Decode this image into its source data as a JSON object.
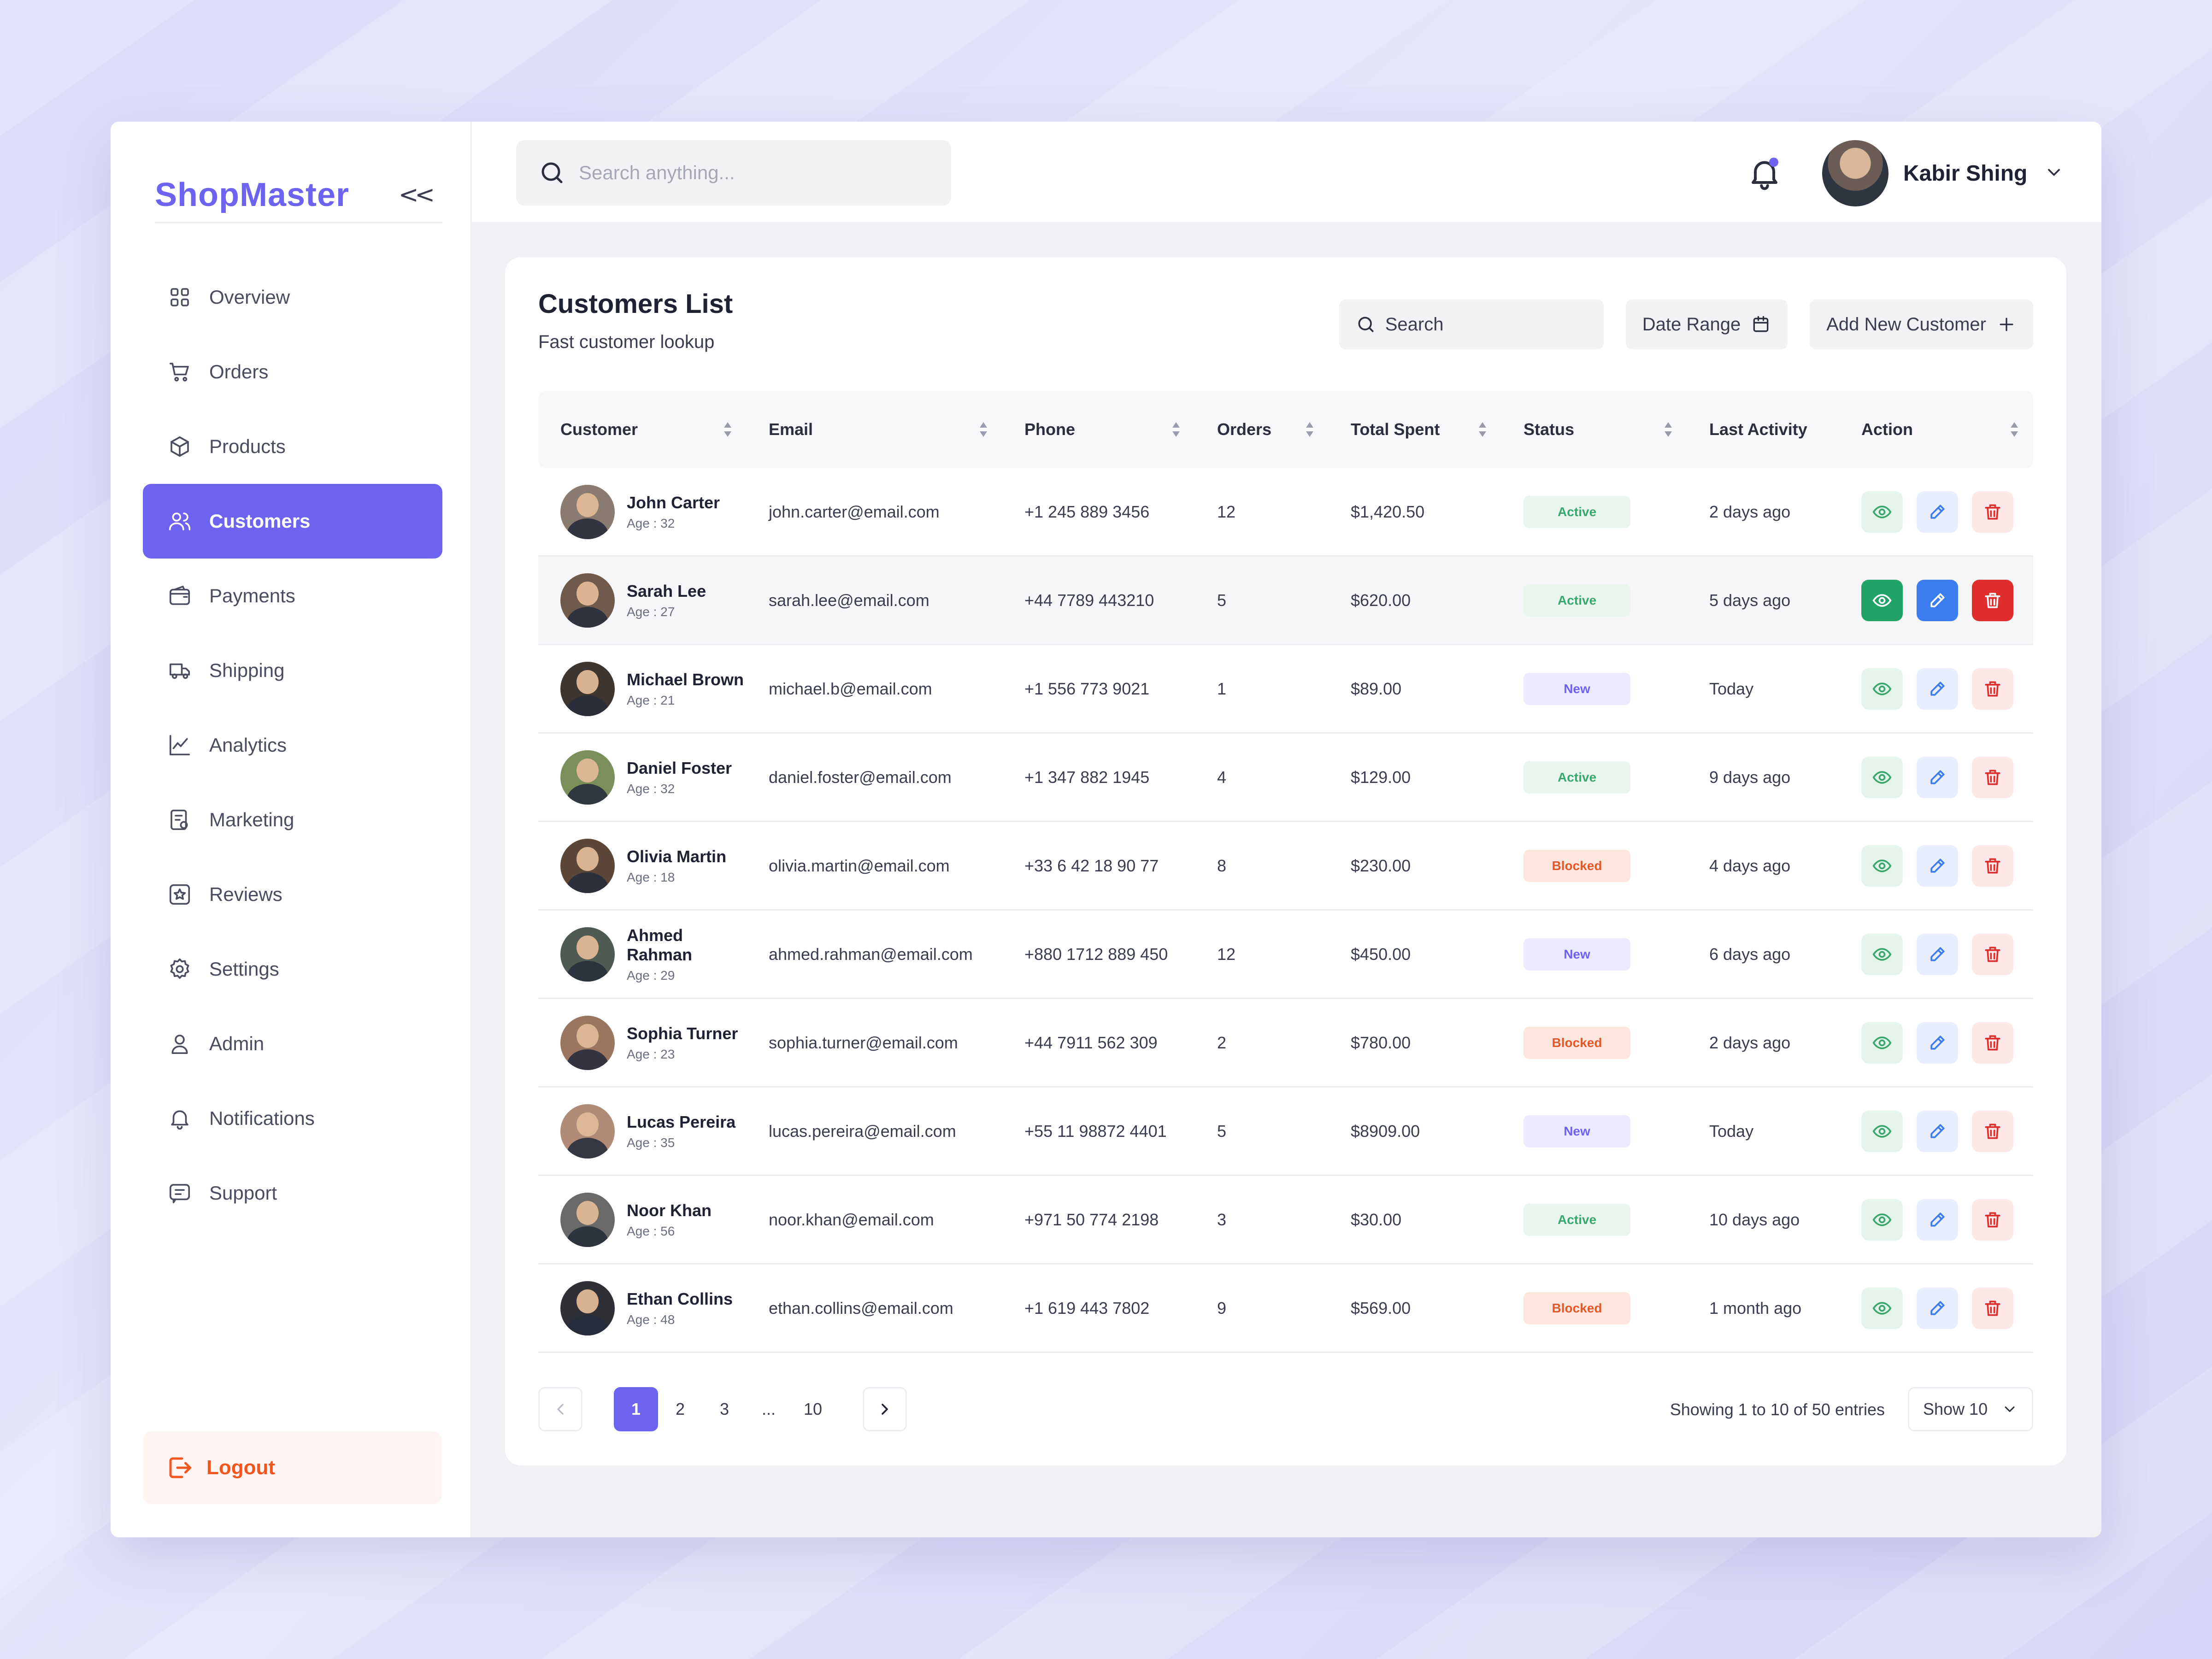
{
  "brand": {
    "name": "ShopMaster",
    "collapse_glyph": "<<"
  },
  "sidebar": {
    "items": [
      {
        "label": "Overview",
        "icon": "grid-icon"
      },
      {
        "label": "Orders",
        "icon": "cart-icon"
      },
      {
        "label": "Products",
        "icon": "box-icon"
      },
      {
        "label": "Customers",
        "icon": "users-icon",
        "active": true
      },
      {
        "label": "Payments",
        "icon": "wallet-icon"
      },
      {
        "label": "Shipping",
        "icon": "truck-icon"
      },
      {
        "label": "Analytics",
        "icon": "chart-icon"
      },
      {
        "label": "Marketing",
        "icon": "megaphone-icon"
      },
      {
        "label": "Reviews",
        "icon": "star-icon"
      },
      {
        "label": "Settings",
        "icon": "gear-icon"
      },
      {
        "label": "Admin",
        "icon": "person-icon"
      },
      {
        "label": "Notifications",
        "icon": "bell-icon"
      },
      {
        "label": "Support",
        "icon": "chat-icon"
      }
    ],
    "logout_label": "Logout"
  },
  "topbar": {
    "search_placeholder": "Search anything...",
    "user_name": "Kabir Shing"
  },
  "card": {
    "title": "Customers List",
    "subtitle": "Fast customer lookup",
    "search_label": "Search",
    "date_range_label": "Date Range",
    "add_label": "Add New Customer"
  },
  "table": {
    "headers": [
      "Customer",
      "Email",
      "Phone",
      "Orders",
      "Total Spent",
      "Status",
      "Last Activity",
      "Action"
    ],
    "rows": [
      {
        "name": "John Carter",
        "age": "Age : 32",
        "email": "john.carter@email.com",
        "phone": "+1 245 889 3456",
        "orders": "12",
        "spent": "$1,420.50",
        "status": "Active",
        "activity": "2 days ago"
      },
      {
        "name": "Sarah Lee",
        "age": "Age : 27",
        "email": "sarah.lee@email.com",
        "phone": "+44 7789 443210",
        "orders": "5",
        "spent": "$620.00",
        "status": "Active",
        "activity": "5 days ago"
      },
      {
        "name": "Michael Brown",
        "age": "Age : 21",
        "email": "michael.b@email.com",
        "phone": "+1 556 773 9021",
        "orders": "1",
        "spent": "$89.00",
        "status": "New",
        "activity": "Today"
      },
      {
        "name": "Daniel Foster",
        "age": "Age : 32",
        "email": "daniel.foster@email.com",
        "phone": "+1 347 882 1945",
        "orders": "4",
        "spent": "$129.00",
        "status": "Active",
        "activity": "9 days ago"
      },
      {
        "name": "Olivia Martin",
        "age": "Age : 18",
        "email": "olivia.martin@email.com",
        "phone": "+33 6 42 18 90 77",
        "orders": "8",
        "spent": "$230.00",
        "status": "Blocked",
        "activity": "4 days ago"
      },
      {
        "name": "Ahmed Rahman",
        "age": "Age : 29",
        "email": "ahmed.rahman@email.com",
        "phone": "+880 1712 889 450",
        "orders": "12",
        "spent": "$450.00",
        "status": "New",
        "activity": "6 days ago"
      },
      {
        "name": "Sophia Turner",
        "age": "Age : 23",
        "email": "sophia.turner@email.com",
        "phone": "+44 7911 562 309",
        "orders": "2",
        "spent": "$780.00",
        "status": "Blocked",
        "activity": "2 days ago"
      },
      {
        "name": "Lucas Pereira",
        "age": "Age : 35",
        "email": "lucas.pereira@email.com",
        "phone": "+55 11 98872 4401",
        "orders": "5",
        "spent": "$8909.00",
        "status": "New",
        "activity": "Today"
      },
      {
        "name": "Noor Khan",
        "age": "Age : 56",
        "email": "noor.khan@email.com",
        "phone": "+971 50 774 2198",
        "orders": "3",
        "spent": "$30.00",
        "status": "Active",
        "activity": "10 days ago"
      },
      {
        "name": "Ethan Collins",
        "age": "Age : 48",
        "email": "ethan.collins@email.com",
        "phone": "+1 619 443 7802",
        "orders": "9",
        "spent": "$569.00",
        "status": "Blocked",
        "activity": "1 month ago"
      }
    ],
    "highlight_row": 1
  },
  "pagination": {
    "pages": [
      "1",
      "2",
      "3",
      "...",
      "10"
    ],
    "current": "1",
    "entries_text": "Showing 1 to 10 of 50 entries",
    "show_label": "Show 10"
  },
  "colors": {
    "accent": "#6c63f0",
    "active": "#3aa76d",
    "blocked": "#e2582a",
    "logout": "#f0561e"
  }
}
